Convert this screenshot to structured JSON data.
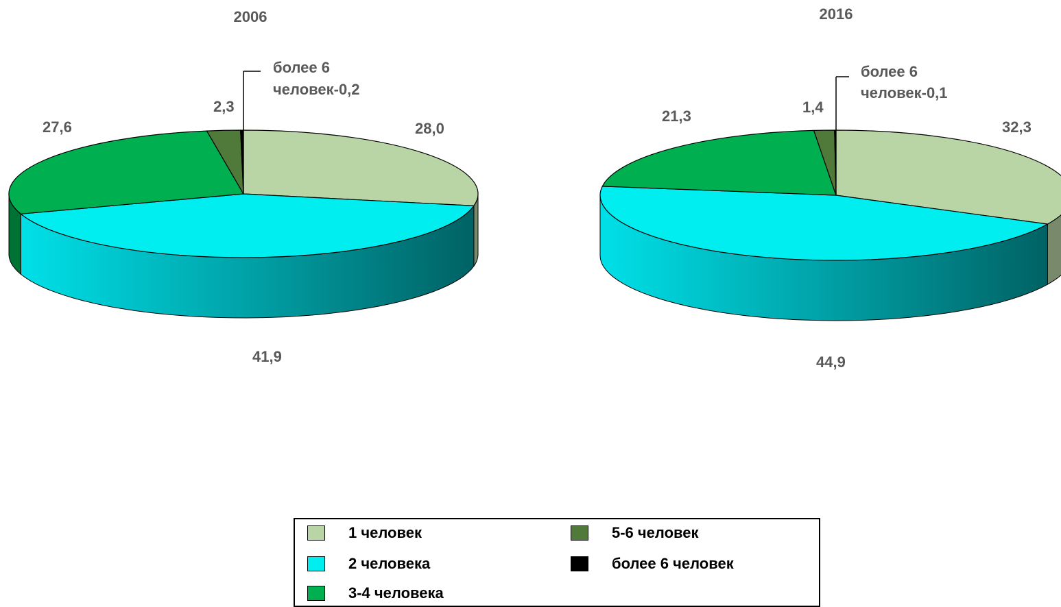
{
  "chart_data": [
    {
      "type": "pie",
      "title": "2006",
      "categories": [
        "1 человек",
        "2 человека",
        "3-4 человека",
        "5-6 человек",
        "более 6 человек"
      ],
      "values": [
        28.0,
        41.9,
        27.6,
        2.3,
        0.2
      ],
      "labels": [
        "28,0",
        "41,9",
        "27,6",
        "2,3",
        "более 6",
        "человек-0,2"
      ]
    },
    {
      "type": "pie",
      "title": "2016",
      "categories": [
        "1 человек",
        "2 человека",
        "3-4 человека",
        "5-6 человек",
        "более 6 человек"
      ],
      "values": [
        32.3,
        44.9,
        21.3,
        1.4,
        0.1
      ],
      "labels": [
        "32,3",
        "44,9",
        "21,3",
        "1,4",
        "более 6",
        "человек-0,1"
      ]
    }
  ],
  "legend": {
    "position": "bottom",
    "items": [
      {
        "label": "1 человек",
        "color": "#b9d5a5"
      },
      {
        "label": "2 человека",
        "color": "#00eef0"
      },
      {
        "label": "3-4 человека",
        "color": "#00b050"
      },
      {
        "label": "5-6 человек",
        "color": "#4f7a3a"
      },
      {
        "label": "более 6 человек",
        "color": "#000000"
      }
    ]
  }
}
